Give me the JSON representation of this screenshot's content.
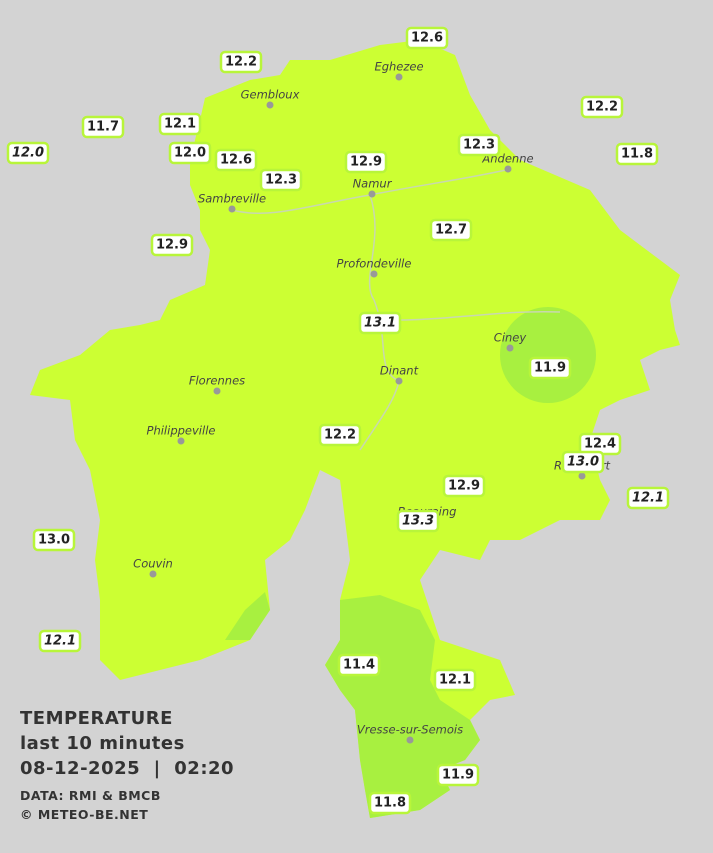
{
  "legend": {
    "title": "TEMPERATURE",
    "period": "last 10 minutes",
    "datetime": "08-12-2025  |  02:20",
    "source": "DATA: RMI & BMCB",
    "credit": "© METEO-BE.NET"
  },
  "towns": [
    "Eghezee",
    "Gembloux",
    "Namur",
    "Andenne",
    "Sambreville",
    "Profondeville",
    "Ciney",
    "Dinant",
    "Florennes",
    "Philippeville",
    "Rochefort",
    "Beauraing",
    "Couvin",
    "Vresse-sur-Semois"
  ],
  "stations": [
    {
      "label": "12.6",
      "italic": false
    },
    {
      "label": "12.2",
      "italic": false
    },
    {
      "label": "11.7",
      "italic": false
    },
    {
      "label": "12.1",
      "italic": false
    },
    {
      "label": "12.0",
      "italic": true
    },
    {
      "label": "12.0",
      "italic": false
    },
    {
      "label": "12.6",
      "italic": false
    },
    {
      "label": "12.3",
      "italic": false
    },
    {
      "label": "12.9",
      "italic": false
    },
    {
      "label": "12.3",
      "italic": false
    },
    {
      "label": "12.2",
      "italic": false
    },
    {
      "label": "11.8",
      "italic": false
    },
    {
      "label": "12.9",
      "italic": false
    },
    {
      "label": "12.7",
      "italic": false
    },
    {
      "label": "13.1",
      "italic": true
    },
    {
      "label": "11.9",
      "italic": false
    },
    {
      "label": "12.2",
      "italic": false
    },
    {
      "label": "12.4",
      "italic": false
    },
    {
      "label": "13.0",
      "italic": true
    },
    {
      "label": "12.1",
      "italic": true
    },
    {
      "label": "12.9",
      "italic": false
    },
    {
      "label": "13.3",
      "italic": true
    },
    {
      "label": "13.0",
      "italic": false
    },
    {
      "label": "12.1",
      "italic": true
    },
    {
      "label": "11.4",
      "italic": false
    },
    {
      "label": "12.1",
      "italic": false
    },
    {
      "label": "11.9",
      "italic": false
    },
    {
      "label": "11.8",
      "italic": false
    }
  ]
}
